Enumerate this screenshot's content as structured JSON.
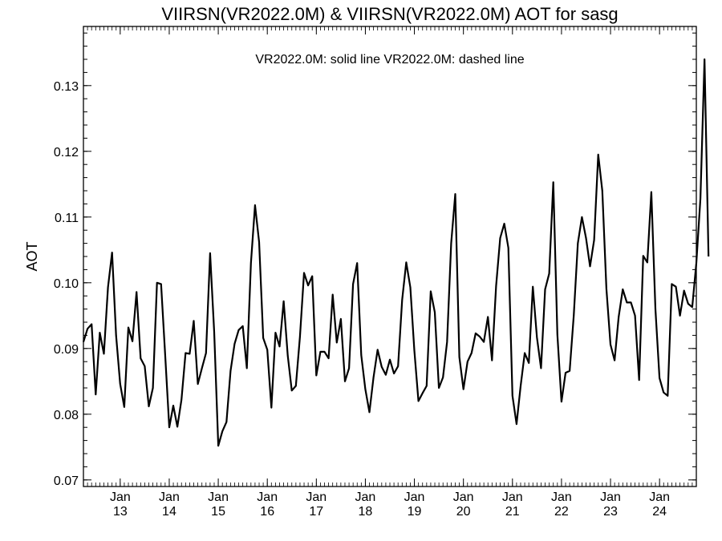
{
  "chart_data": {
    "type": "line",
    "title": "VIIRSN(VR2022.0M) & VIIRSN(VR2022.0M)  AOT for sasg",
    "legend_note": "VR2022.0M: solid line   VR2022.0M: dashed line",
    "ylabel": "AOT",
    "xlabel": "",
    "xlim": [
      12.25,
      24.75
    ],
    "ylim": [
      0.069,
      0.139
    ],
    "yticks": [
      0.07,
      0.08,
      0.09,
      0.1,
      0.11,
      0.12,
      0.13
    ],
    "ytick_labels": [
      "0.07",
      "0.08",
      "0.09",
      "0.10",
      "0.11",
      "0.12",
      "0.13"
    ],
    "xticks": [
      {
        "value": 13,
        "month": "Jan",
        "day": "13"
      },
      {
        "value": 14,
        "month": "Jan",
        "day": "14"
      },
      {
        "value": 15,
        "month": "Jan",
        "day": "15"
      },
      {
        "value": 16,
        "month": "Jan",
        "day": "16"
      },
      {
        "value": 17,
        "month": "Jan",
        "day": "17"
      },
      {
        "value": 18,
        "month": "Jan",
        "day": "18"
      },
      {
        "value": 19,
        "month": "Jan",
        "day": "19"
      },
      {
        "value": 20,
        "month": "Jan",
        "day": "20"
      },
      {
        "value": 21,
        "month": "Jan",
        "day": "21"
      },
      {
        "value": 22,
        "month": "Jan",
        "day": "22"
      },
      {
        "value": 23,
        "month": "Jan",
        "day": "23"
      },
      {
        "value": 24,
        "month": "Jan",
        "day": "24"
      }
    ],
    "grid": false,
    "series": [
      {
        "name": "VR2022.0M",
        "style": "solid",
        "color": "#000000",
        "x_start": 12.25,
        "x_step": 0.08333,
        "values": [
          0.091,
          0.093,
          0.0937,
          0.083,
          0.0924,
          0.0892,
          0.0993,
          0.1046,
          0.092,
          0.0846,
          0.0811,
          0.0932,
          0.0911,
          0.0986,
          0.0885,
          0.0873,
          0.0812,
          0.084,
          0.1,
          0.0998,
          0.089,
          0.078,
          0.0813,
          0.0781,
          0.0822,
          0.0893,
          0.0892,
          0.0942,
          0.0846,
          0.087,
          0.0893,
          0.1045,
          0.0925,
          0.0752,
          0.0774,
          0.0788,
          0.0866,
          0.0907,
          0.0928,
          0.0934,
          0.087,
          0.103,
          0.1118,
          0.1062,
          0.0916,
          0.0898,
          0.081,
          0.0924,
          0.0903,
          0.0972,
          0.0889,
          0.0836,
          0.0843,
          0.0918,
          0.1015,
          0.0996,
          0.101,
          0.0859,
          0.0895,
          0.0895,
          0.0885,
          0.0982,
          0.0909,
          0.0945,
          0.085,
          0.087,
          0.0998,
          0.103,
          0.089,
          0.0838,
          0.0803,
          0.0856,
          0.0898,
          0.0872,
          0.086,
          0.0883,
          0.0862,
          0.0873,
          0.0974,
          0.1031,
          0.0993,
          0.0897,
          0.082,
          0.0832,
          0.0843,
          0.0987,
          0.0955,
          0.084,
          0.0856,
          0.091,
          0.106,
          0.1135,
          0.0887,
          0.0838,
          0.088,
          0.0893,
          0.0923,
          0.0918,
          0.091,
          0.0948,
          0.0882,
          0.0995,
          0.1068,
          0.109,
          0.1053,
          0.0828,
          0.0785,
          0.0843,
          0.0893,
          0.0878,
          0.0994,
          0.0917,
          0.087,
          0.099,
          0.1014,
          0.1153,
          0.0921,
          0.0819,
          0.0863,
          0.0866,
          0.095,
          0.106,
          0.11,
          0.1068,
          0.1025,
          0.1065,
          0.1195,
          0.114,
          0.0991,
          0.0906,
          0.0882,
          0.0948,
          0.099,
          0.097,
          0.097,
          0.095,
          0.0852,
          0.1041,
          0.1031,
          0.1138,
          0.096,
          0.0855,
          0.0833,
          0.0828,
          0.0998,
          0.0994,
          0.095,
          0.0988,
          0.0968,
          0.0963,
          0.103,
          0.1128,
          0.134,
          0.104
        ]
      }
    ]
  }
}
